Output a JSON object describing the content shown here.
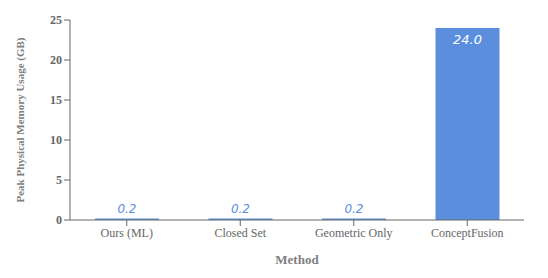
{
  "chart_data": {
    "type": "bar",
    "categories": [
      "Ours (ML)",
      "Closed Set",
      "Geometric Only",
      "ConceptFusion"
    ],
    "values": [
      0.2,
      0.2,
      0.2,
      24.0
    ],
    "value_labels": [
      "0.2",
      "0.2",
      "0.2",
      "24.0"
    ],
    "data_labels": true,
    "color": "#5b8fde",
    "xlabel": "Method",
    "ylabel": "Peak Physical Memory Usage (GB)",
    "ylim": [
      0,
      25
    ],
    "yticks": [
      0,
      5,
      10,
      15,
      20,
      25
    ],
    "grid": false
  }
}
